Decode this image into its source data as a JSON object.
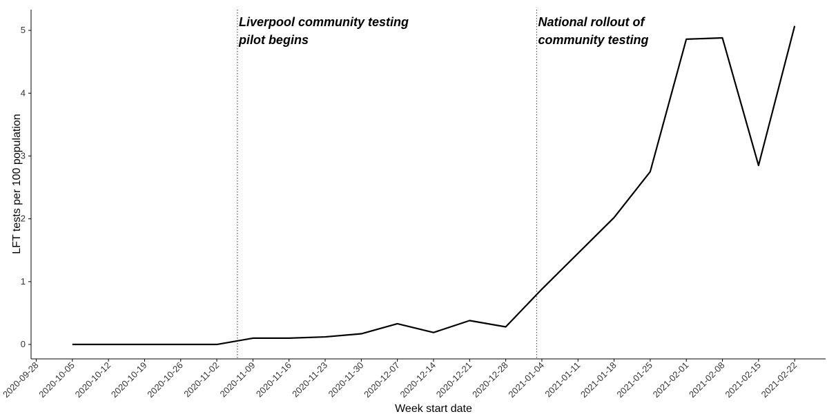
{
  "chart_data": {
    "type": "line",
    "x_label": "Week start date",
    "y_label": "LFT tests per 100 population",
    "x": [
      "2020-10-05",
      "2020-10-12",
      "2020-10-19",
      "2020-10-26",
      "2020-11-02",
      "2020-11-09",
      "2020-11-16",
      "2020-11-23",
      "2020-11-30",
      "2020-12-07",
      "2020-12-14",
      "2020-12-21",
      "2020-12-28",
      "2021-01-04",
      "2021-01-11",
      "2021-01-18",
      "2021-01-25",
      "2021-02-01",
      "2021-02-08",
      "2021-02-15",
      "2021-02-22"
    ],
    "values": [
      0,
      0,
      0,
      0,
      0,
      0.1,
      0.1,
      0.12,
      0.17,
      0.33,
      0.19,
      0.38,
      0.28,
      0.88,
      1.45,
      2.02,
      2.75,
      4.86,
      4.88,
      2.85,
      5.07
    ],
    "color": "#000000",
    "xlim": [
      "2020-09-27",
      "2021-02-28"
    ],
    "xticks": [
      "2020-09-28",
      "2020-10-05",
      "2020-10-12",
      "2020-10-19",
      "2020-10-26",
      "2020-11-02",
      "2020-11-09",
      "2020-11-16",
      "2020-11-23",
      "2020-11-30",
      "2020-12-07",
      "2020-12-14",
      "2020-12-21",
      "2020-12-28",
      "2021-01-04",
      "2021-01-11",
      "2021-01-18",
      "2021-01-25",
      "2021-02-01",
      "2021-02-08",
      "2021-02-15",
      "2021-02-22"
    ],
    "ylim": [
      -0.23,
      5.33
    ],
    "yticks": [
      0,
      1,
      2,
      3,
      4,
      5
    ],
    "grid": false,
    "annotations": [
      {
        "x": "2020-11-06",
        "lines": [
          "Liverpool community testing",
          "pilot begins"
        ]
      },
      {
        "x": "2021-01-03",
        "lines": [
          "National rollout of",
          "community testing"
        ]
      }
    ]
  }
}
